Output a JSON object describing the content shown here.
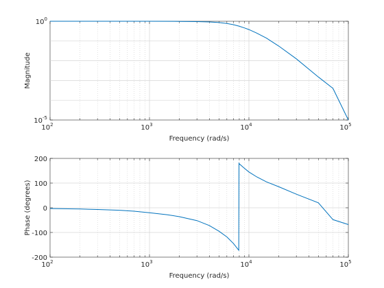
{
  "chart_data": [
    {
      "type": "line",
      "xlabel": "Frequency (rad/s)",
      "ylabel": "Magnitude",
      "xscale": "log",
      "yscale": "log",
      "xlim": [
        100,
        100000
      ],
      "ylim": [
        1e-05,
        1
      ],
      "x_ticks": [
        {
          "base": "10",
          "exp": "2",
          "value": 100
        },
        {
          "base": "10",
          "exp": "3",
          "value": 1000
        },
        {
          "base": "10",
          "exp": "4",
          "value": 10000
        },
        {
          "base": "10",
          "exp": "5",
          "value": 100000
        }
      ],
      "y_ticks": [
        {
          "base": "10",
          "exp": "-5",
          "value": 1e-05
        },
        {
          "base": "10",
          "exp": "0",
          "value": 1
        }
      ],
      "grid": true,
      "series": [
        {
          "color": "#0072bd",
          "x": [
            100,
            200,
            500,
            1000,
            2000,
            3000,
            4000,
            5000,
            6000,
            7000,
            8000,
            9000,
            10000,
            12000,
            15000,
            20000,
            30000,
            50000,
            70000,
            100000
          ],
          "y": [
            1.0,
            1.0,
            0.999,
            0.996,
            0.985,
            0.96,
            0.92,
            0.86,
            0.77,
            0.67,
            0.56,
            0.46,
            0.38,
            0.25,
            0.14,
            0.055,
            0.0125,
            0.0015,
            0.0004,
            1e-05
          ]
        }
      ]
    },
    {
      "type": "line",
      "xlabel": "Frequency (rad/s)",
      "ylabel": "Phase (degrees)",
      "xscale": "log",
      "yscale": "linear",
      "xlim": [
        100,
        100000
      ],
      "ylim": [
        -200,
        200
      ],
      "x_ticks": [
        {
          "base": "10",
          "exp": "2",
          "value": 100
        },
        {
          "base": "10",
          "exp": "3",
          "value": 1000
        },
        {
          "base": "10",
          "exp": "4",
          "value": 10000
        },
        {
          "base": "10",
          "exp": "5",
          "value": 100000
        }
      ],
      "y_ticks": [
        {
          "label": "200",
          "value": 200
        },
        {
          "label": "100",
          "value": 100
        },
        {
          "label": "0",
          "value": 0
        },
        {
          "label": "-100",
          "value": -100
        },
        {
          "label": "-200",
          "value": -200
        }
      ],
      "grid": true,
      "series": [
        {
          "color": "#0072bd",
          "x": [
            100,
            200,
            300,
            500,
            700,
            1000,
            1500,
            2000,
            3000,
            4000,
            5000,
            6000,
            7000,
            7900,
            7950,
            8000,
            9000,
            10000,
            12000,
            15000,
            20000,
            30000,
            50000,
            70000,
            100000
          ],
          "y": [
            -3,
            -5,
            -7,
            -10,
            -14,
            -20,
            -28,
            -36,
            -52,
            -72,
            -95,
            -118,
            -145,
            -172,
            180,
            178,
            160,
            145,
            125,
            105,
            85,
            55,
            20,
            -48,
            -68
          ]
        }
      ]
    }
  ]
}
